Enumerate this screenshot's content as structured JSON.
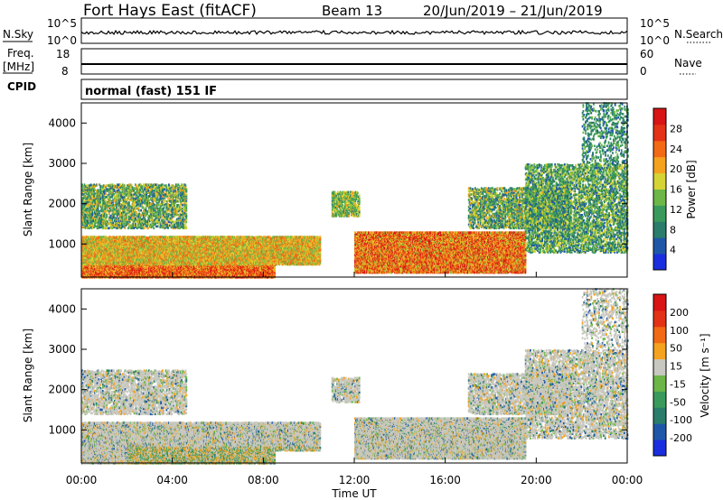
{
  "header": {
    "station": "Fort Hays East (fitACF)",
    "beam": "Beam 13",
    "dates": "20/Jun/2019 – 21/Jun/2019"
  },
  "top_panels": {
    "nsky_label": "N.Sky",
    "nsky_ticks": [
      "10^5",
      "10^0"
    ],
    "nsearch_label": "N.Search",
    "freq_label_1": "Freq.",
    "freq_label_2": "[MHz]",
    "freq_ticks": [
      "18",
      "8"
    ],
    "nave_label": "Nave",
    "nave_ticks": [
      "60",
      "0"
    ],
    "cpid_label": "CPID",
    "cpid_text": "normal (fast) 151 IF"
  },
  "chart_data": [
    {
      "type": "heatmap",
      "title": "",
      "xlabel": "",
      "ylabel": "Slant Range [km]",
      "ylim": [
        180,
        4500
      ],
      "xlim": [
        0,
        24
      ],
      "yticks": [
        "1000",
        "2000",
        "3000",
        "4000"
      ],
      "colorbar": {
        "label": "Power [dB]",
        "ticks": [
          "28",
          "24",
          "20",
          "16",
          "12",
          "8",
          "4"
        ],
        "range": [
          0,
          30
        ],
        "colors": [
          "#1a2ee0",
          "#1f57a8",
          "#2a7d6a",
          "#3a9a5c",
          "#6cb748",
          "#d6d335",
          "#f5a21e",
          "#f26a14",
          "#e33216",
          "#d81414"
        ]
      }
    },
    {
      "type": "heatmap",
      "title": "",
      "xlabel": "Time UT",
      "ylabel": "Slant Range [km]",
      "ylim": [
        180,
        4500
      ],
      "xlim": [
        0,
        24
      ],
      "yticks": [
        "1000",
        "2000",
        "3000",
        "4000"
      ],
      "xticks": [
        "00:00",
        "04:00",
        "08:00",
        "12:00",
        "16:00",
        "20:00",
        "00:00"
      ],
      "colorbar": {
        "label": "Velocity [m s⁻¹]",
        "ticks": [
          "200",
          "100",
          "50",
          "15",
          "-15",
          "-50",
          "-100",
          "-200"
        ],
        "colors": [
          "#1a2ee0",
          "#1f57a8",
          "#2a7d6a",
          "#3a9a5c",
          "#6cb748",
          "#c8c8c0",
          "#f5a21e",
          "#f26a14",
          "#e33216",
          "#d81414"
        ]
      }
    }
  ]
}
